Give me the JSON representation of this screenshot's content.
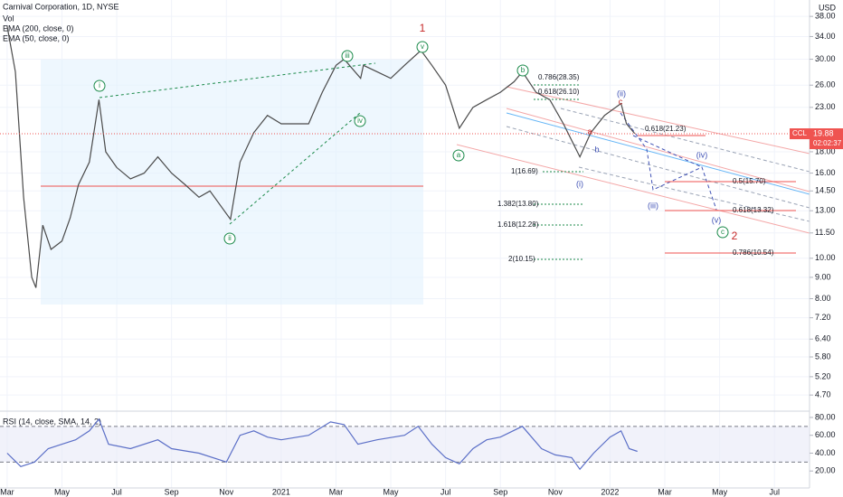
{
  "chart_data": [
    {
      "type": "line",
      "title": "Carnival Corporation, 1D, NYSE",
      "indicators": [
        "Vol",
        "EMA (200, close, 0)",
        "EMA (50, close, 0)"
      ],
      "currency": "USD",
      "last_price": {
        "symbol": "CCL",
        "value": 19.88,
        "countdown": "02:02:37"
      },
      "log_scale": true,
      "grid": true,
      "color": "#4a4a4a",
      "x": [
        0,
        0.3,
        0.6,
        0.9,
        1.05,
        1.3,
        1.6,
        2.0,
        2.3,
        2.6,
        3.0,
        3.35,
        3.6,
        4.0,
        4.5,
        5.0,
        5.5,
        6.0,
        6.5,
        7.0,
        7.4,
        8.15,
        8.5,
        9.0,
        9.5,
        10.0,
        10.5,
        11.0,
        11.5,
        12.0,
        12.3,
        12.9,
        13.0,
        13.5,
        14.0,
        14.5,
        15.1,
        15.5,
        16.0,
        16.5,
        17.0,
        17.5,
        18.0,
        18.5,
        18.8,
        19.3,
        19.8,
        20.3,
        20.9,
        21.3,
        21.8,
        22.4,
        22.6,
        22.9
      ],
      "values": [
        36,
        28,
        14,
        9,
        8.5,
        12,
        10.5,
        11,
        12.5,
        15,
        17,
        24,
        18,
        16.5,
        15.5,
        16,
        17.5,
        16,
        15,
        14,
        14.5,
        12.4,
        17,
        20,
        22,
        21,
        21,
        21,
        25,
        29,
        30,
        27,
        29,
        28,
        27,
        29,
        31.5,
        29,
        26,
        20.5,
        23,
        24,
        25,
        26.5,
        28,
        25,
        24,
        21,
        17.5,
        20,
        22,
        23.5,
        21,
        19.9
      ],
      "xlim": [
        -0.26,
        29.28
      ],
      "xticks": [
        {
          "value": 0,
          "label": "Mar"
        },
        {
          "value": 2,
          "label": "May"
        },
        {
          "value": 4,
          "label": "Jul"
        },
        {
          "value": 6,
          "label": "Sep"
        },
        {
          "value": 8,
          "label": "Nov"
        },
        {
          "value": 10,
          "label": "2021"
        },
        {
          "value": 12,
          "label": "Mar"
        },
        {
          "value": 14,
          "label": "May"
        },
        {
          "value": 16,
          "label": "Jul"
        },
        {
          "value": 18,
          "label": "Sep"
        },
        {
          "value": 20,
          "label": "Nov"
        },
        {
          "value": 22,
          "label": "2022"
        },
        {
          "value": 24,
          "label": "Mar"
        },
        {
          "value": 26,
          "label": "May"
        },
        {
          "value": 28,
          "label": "Jul"
        }
      ],
      "ylim": [
        4.3,
        41.6
      ],
      "yticks": [
        {
          "value": 38,
          "label": "38.00"
        },
        {
          "value": 34,
          "label": "34.00"
        },
        {
          "value": 30,
          "label": "30.00"
        },
        {
          "value": 26,
          "label": "26.00"
        },
        {
          "value": 23,
          "label": "23.00"
        },
        {
          "value": 18,
          "label": "18.00"
        },
        {
          "value": 16,
          "label": "16.00"
        },
        {
          "value": 14.5,
          "label": "14.50"
        },
        {
          "value": 13,
          "label": "13.00"
        },
        {
          "value": 11.5,
          "label": "11.50"
        },
        {
          "value": 10,
          "label": "10.00"
        },
        {
          "value": 9,
          "label": "9.00"
        },
        {
          "value": 8,
          "label": "8.00"
        },
        {
          "value": 7.2,
          "label": "7.20"
        },
        {
          "value": 6.4,
          "label": "6.40"
        },
        {
          "value": 5.8,
          "label": "5.80"
        },
        {
          "value": 5.2,
          "label": "5.20"
        },
        {
          "value": 4.7,
          "label": "4.70"
        }
      ],
      "annotations": [
        "1",
        "2",
        "i",
        "ii",
        "iii",
        "iv",
        "v",
        "a",
        "b",
        "c",
        "(i)",
        "(ii)",
        "(iii)",
        "(iv)",
        "(v)",
        "a",
        "b",
        "c",
        "0.786(28.35)",
        "0.618(26.10)",
        "1(16.69)",
        "1.382(13.80)",
        "1.618(12.28)",
        "2(10.15)",
        "0.618(21.23)",
        "0.5(15.70)",
        "0.618(13.32)",
        "0.786(10.54)"
      ]
    },
    {
      "type": "line",
      "title": "RSI (14, close, SMA, 14, 2)",
      "color": "#5b6fc7",
      "x": [
        0,
        0.5,
        1,
        1.5,
        2,
        2.5,
        3,
        3.35,
        3.7,
        4.5,
        5.5,
        6,
        7,
        8,
        8.5,
        9,
        9.5,
        10,
        11,
        11.8,
        12.3,
        12.8,
        13.5,
        14.5,
        15,
        15.5,
        16,
        16.5,
        17,
        17.5,
        18,
        18.8,
        19.5,
        20,
        20.6,
        20.9,
        21.4,
        22,
        22.4,
        22.7,
        23
      ],
      "values": [
        40,
        25,
        30,
        45,
        50,
        55,
        65,
        78,
        50,
        45,
        55,
        45,
        40,
        30,
        60,
        65,
        58,
        55,
        60,
        75,
        72,
        50,
        55,
        60,
        70,
        50,
        35,
        28,
        45,
        55,
        58,
        70,
        45,
        38,
        35,
        22,
        40,
        58,
        65,
        45,
        42
      ],
      "xlim": [
        -0.26,
        29.28
      ],
      "ylim": [
        1,
        84
      ],
      "yticks": [
        {
          "value": 80,
          "label": "80.00"
        },
        {
          "value": 60,
          "label": "60.00"
        },
        {
          "value": 40,
          "label": "40.00"
        },
        {
          "value": 20,
          "label": "20.00"
        }
      ],
      "band": [
        30,
        70
      ]
    }
  ]
}
